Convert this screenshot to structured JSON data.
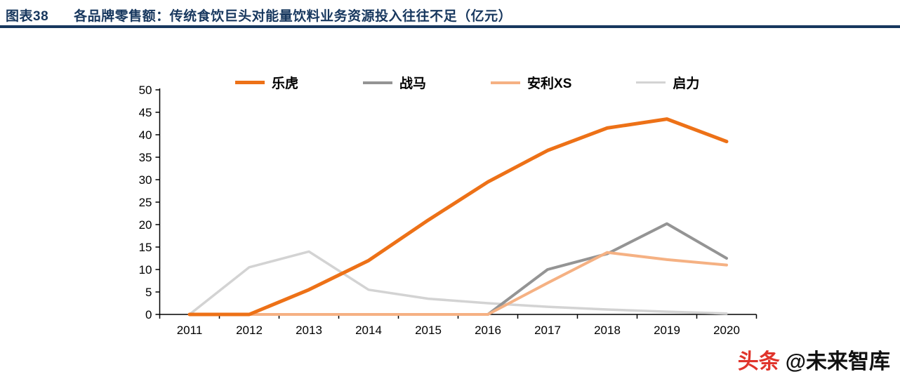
{
  "colors": {
    "header_navy": "#17375E",
    "brand_red": "#E0342B",
    "axis_black": "#000000"
  },
  "header": {
    "figure_label": "图表38",
    "title": "各品牌零售额：传统食饮巨头对能量饮料业务资源投入往往不足（亿元）"
  },
  "chart_data": {
    "type": "line",
    "title": "各品牌零售额：传统食饮巨头对能量饮料业务资源投入往往不足（亿元）",
    "xlabel": "",
    "ylabel": "",
    "ylim": [
      0,
      50
    ],
    "ytick_step": 5,
    "grid": false,
    "legend_position": "top",
    "x": [
      2011,
      2012,
      2013,
      2014,
      2015,
      2016,
      2017,
      2018,
      2019,
      2020
    ],
    "series": [
      {
        "name": "乐虎",
        "key": "lehu",
        "color": "#ED7117",
        "width": 5,
        "values": [
          0,
          0,
          5.5,
          12,
          21,
          29.5,
          36.5,
          41.5,
          43.5,
          38.5
        ]
      },
      {
        "name": "战马",
        "key": "zhanma",
        "color": "#949494",
        "width": 4,
        "values": [
          null,
          null,
          null,
          null,
          null,
          0,
          10,
          13.5,
          20.2,
          12.5
        ]
      },
      {
        "name": "安利XS",
        "key": "amway-xs",
        "color": "#F5B183",
        "width": 4,
        "values": [
          0,
          0,
          0,
          0,
          0,
          0,
          7,
          13.8,
          12.2,
          11
        ]
      },
      {
        "name": "启力",
        "key": "qili",
        "color": "#D3D3D3",
        "width": 3.5,
        "values": [
          0,
          10.5,
          14,
          5.5,
          3.5,
          2.5,
          1.7,
          1.1,
          0.6,
          0.2
        ]
      }
    ]
  },
  "footer": {
    "brand": "头条",
    "handle": "@未来智库"
  }
}
